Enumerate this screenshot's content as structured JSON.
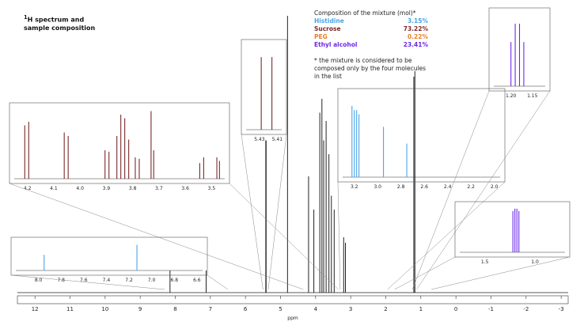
{
  "chart_data": {
    "type": "line",
    "title_prefix": "1",
    "title_main": "H spectrum and",
    "title_line2": "sample composition",
    "composition": {
      "heading": "Composition of the mixture (mol)*",
      "items": [
        {
          "name": "Histidine",
          "percent": "3.15%",
          "color": "#4aa3e8"
        },
        {
          "name": "Sucrose",
          "percent": "73.22%",
          "color": "#7a2a2a"
        },
        {
          "name": "PEG",
          "percent": "0.22%",
          "color": "#e8802a"
        },
        {
          "name": "Ethyl alcohol",
          "percent": "23.41%",
          "color": "#6a2ae8"
        }
      ],
      "note_lines": [
        "* the mixture is considered to be",
        "composed only by the four molecules",
        "in the list"
      ]
    },
    "xlabel": "ppm",
    "xlim": [
      12.5,
      -3.2
    ],
    "xticks": [
      "12",
      "11",
      "10",
      "9",
      "8",
      "7",
      "6",
      "5",
      "4",
      "3",
      "2",
      "1",
      "0",
      "-1",
      "-2",
      "-3"
    ],
    "main_peaks": [
      {
        "x": 8.15,
        "h": 0.08
      },
      {
        "x": 7.12,
        "h": 0.08
      },
      {
        "x": 5.42,
        "h": 0.55
      },
      {
        "x": 5.41,
        "h": 0.55
      },
      {
        "x": 4.8,
        "h": 1.0
      },
      {
        "x": 4.2,
        "h": 0.42
      },
      {
        "x": 4.05,
        "h": 0.3
      },
      {
        "x": 3.88,
        "h": 0.65
      },
      {
        "x": 3.82,
        "h": 0.7
      },
      {
        "x": 3.77,
        "h": 0.55
      },
      {
        "x": 3.7,
        "h": 0.62
      },
      {
        "x": 3.62,
        "h": 0.5
      },
      {
        "x": 3.55,
        "h": 0.35
      },
      {
        "x": 3.47,
        "h": 0.3
      },
      {
        "x": 3.2,
        "h": 0.2
      },
      {
        "x": 3.15,
        "h": 0.18
      },
      {
        "x": 1.2,
        "h": 0.78
      },
      {
        "x": 1.17,
        "h": 0.8
      }
    ],
    "insets": [
      {
        "name": "inset-sucrose",
        "xticks": [
          "4.2",
          "4.1",
          "4.0",
          "3.9",
          "3.8",
          "3.7",
          "3.6",
          "3.5"
        ],
        "color": "#7a2a2a"
      },
      {
        "name": "inset-anomeric",
        "xticks": [
          "5.43",
          "5.41"
        ],
        "color": "#7a2a2a"
      },
      {
        "name": "inset-histidine-aliphatic",
        "xticks": [
          "3.2",
          "3.0",
          "2.8",
          "2.6",
          "2.4",
          "2.2",
          "2.0"
        ],
        "color": "#4aa3e8"
      },
      {
        "name": "inset-ethanol-ch3",
        "xticks": [
          "1.20",
          "1.15"
        ],
        "color": "#6a2ae8"
      },
      {
        "name": "inset-ethanol-wide",
        "xticks": [
          "1.5",
          "1.0"
        ],
        "color": "#6a2ae8"
      },
      {
        "name": "inset-histidine-aromatic",
        "xticks": [
          "8.0",
          "7.8",
          "7.6",
          "7.4",
          "7.2",
          "7.0",
          "6.8",
          "6.6"
        ],
        "color": "#4aa3e8"
      }
    ]
  }
}
